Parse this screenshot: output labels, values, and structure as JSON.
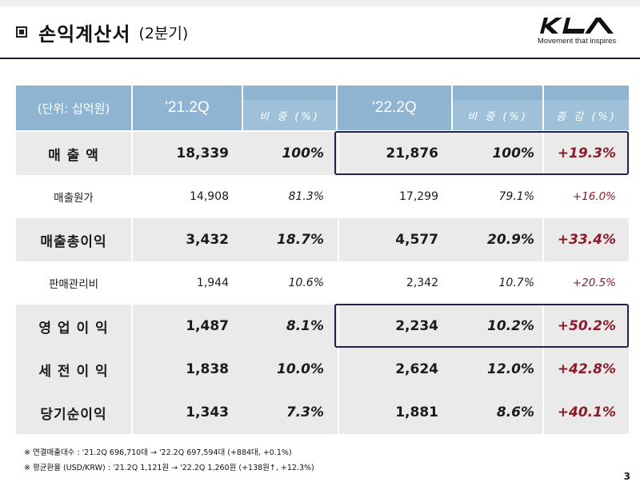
{
  "header": {
    "title": "손익계산서",
    "subtitle": "(2분기)",
    "brand_tagline": "Movement that inspires",
    "logo_text": "KIA"
  },
  "table": {
    "unit_label": "(단위: 십억원)",
    "col_prev": "'21.2Q",
    "col_curr": "'22.2Q",
    "col_ratio": "비 중 (%)",
    "col_change": "증 감 (%)",
    "rows": [
      {
        "label": "매 출 액",
        "prev": "18,339",
        "prev_pct": "100%",
        "curr": "21,876",
        "curr_pct": "100%",
        "change": "+19.3%"
      },
      {
        "label": "매출원가",
        "prev": "14,908",
        "prev_pct": "81.3%",
        "curr": "17,299",
        "curr_pct": "79.1%",
        "change": "+16.0%"
      },
      {
        "label": "매출총이익",
        "prev": "3,432",
        "prev_pct": "18.7%",
        "curr": "4,577",
        "curr_pct": "20.9%",
        "change": "+33.4%"
      },
      {
        "label": "판매관리비",
        "prev": "1,944",
        "prev_pct": "10.6%",
        "curr": "2,342",
        "curr_pct": "10.7%",
        "change": "+20.5%"
      },
      {
        "label": "영 업 이 익",
        "prev": "1,487",
        "prev_pct": "8.1%",
        "curr": "2,234",
        "curr_pct": "10.2%",
        "change": "+50.2%"
      },
      {
        "label": "세 전 이 익",
        "prev": "1,838",
        "prev_pct": "10.0%",
        "curr": "2,624",
        "curr_pct": "12.0%",
        "change": "+42.8%"
      },
      {
        "label": "당기순이익",
        "prev": "1,343",
        "prev_pct": "7.3%",
        "curr": "1,881",
        "curr_pct": "8.6%",
        "change": "+40.1%"
      }
    ]
  },
  "notes": [
    "※  연결매출대수 : '21.2Q 696,710대  →  '22.2Q 697,594대 (+884대, +0.1%)",
    "※  평균환율 (USD/KRW) : '21.2Q 1,121원  →  '22.2Q 1,260원 (+138원↑, +12.3%)"
  ],
  "page_number": "3",
  "colors": {
    "header_fill": "#8fb4d1",
    "header_light": "#9fc0d9",
    "row_shade": "#eaeaea",
    "highlight_border": "#1e2250",
    "change_red": "#8c1c2a"
  }
}
